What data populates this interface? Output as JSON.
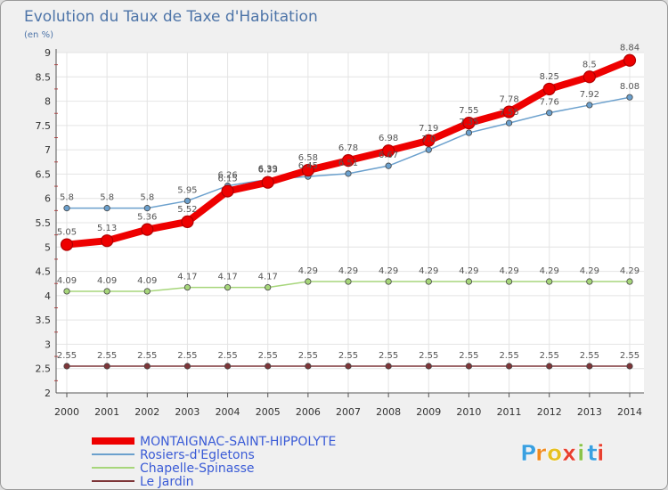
{
  "chart_data": {
    "type": "line",
    "title": "Evolution du Taux de Taxe d'Habitation",
    "subtitle": "(en %)",
    "x": [
      "2000",
      "2001",
      "2002",
      "2003",
      "2004",
      "2005",
      "2006",
      "2007",
      "2008",
      "2009",
      "2010",
      "2011",
      "2012",
      "2013",
      "2014"
    ],
    "ylim": [
      2,
      9
    ],
    "yticks": [
      2,
      2.5,
      3,
      3.5,
      4,
      4.5,
      5,
      5.5,
      6,
      6.5,
      7,
      7.5,
      8,
      8.5,
      9
    ],
    "ytick_labels": [
      "2",
      "2.5",
      "3",
      "3.5",
      "4",
      "4.5",
      "5",
      "5.5",
      "6",
      "6.5",
      "7",
      "7.5",
      "8",
      "8.5",
      "9"
    ],
    "grid": true,
    "legend_position": "bottom-left",
    "series": [
      {
        "name": "MONTAIGNAC-SAINT-HIPPOLYTE",
        "values": [
          5.05,
          5.13,
          5.36,
          5.52,
          6.15,
          6.33,
          6.58,
          6.78,
          6.98,
          7.19,
          7.55,
          7.78,
          8.25,
          8.5,
          8.84
        ],
        "labels": [
          "5.05",
          "5.13",
          "5.36",
          "5.52",
          "6.15",
          "6.33",
          "6.58",
          "6.78",
          "6.98",
          "7.19",
          "7.55",
          "7.78",
          "8.25",
          "8.5",
          "8.84"
        ],
        "color": "#ee0000",
        "bold": true
      },
      {
        "name": "Rosiers-d'Egletons",
        "values": [
          5.8,
          5.8,
          5.8,
          5.95,
          6.26,
          6.39,
          6.45,
          6.51,
          6.67,
          7.0,
          7.35,
          7.55,
          7.76,
          7.92,
          8.08
        ],
        "labels": [
          "5.8",
          "5.8",
          "5.8",
          "5.95",
          "6.26",
          "6.39",
          "6.45",
          "6.51",
          "6.67",
          "7.0",
          "7.35",
          "7.55",
          "7.76",
          "7.92",
          "8.08"
        ],
        "color": "#6ba0cd",
        "bold": false
      },
      {
        "name": "Chapelle-Spinasse",
        "values": [
          4.09,
          4.09,
          4.09,
          4.17,
          4.17,
          4.17,
          4.29,
          4.29,
          4.29,
          4.29,
          4.29,
          4.29,
          4.29,
          4.29,
          4.29
        ],
        "labels": [
          "4.09",
          "4.09",
          "4.09",
          "4.17",
          "4.17",
          "4.17",
          "4.29",
          "4.29",
          "4.29",
          "4.29",
          "4.29",
          "4.29",
          "4.29",
          "4.29",
          "4.29"
        ],
        "color": "#a7d67b",
        "bold": false
      },
      {
        "name": "Le Jardin",
        "values": [
          2.55,
          2.55,
          2.55,
          2.55,
          2.55,
          2.55,
          2.55,
          2.55,
          2.55,
          2.55,
          2.55,
          2.55,
          2.55,
          2.55,
          2.55
        ],
        "labels": [
          "2.55",
          "2.55",
          "2.55",
          "2.55",
          "2.55",
          "2.55",
          "2.55",
          "2.55",
          "2.55",
          "2.55",
          "2.55",
          "2.55",
          "2.55",
          "2.55",
          "2.55"
        ],
        "color": "#7d3538",
        "bold": false
      }
    ]
  },
  "branding": {
    "logo_letters": [
      "P",
      "r",
      "o",
      "x",
      "i",
      "t",
      "i"
    ],
    "logo_colors": [
      "#3aa0e0",
      "#f08a20",
      "#e6c020",
      "#e84030",
      "#8bc34a",
      "#3aa0e0",
      "#e84030"
    ]
  }
}
